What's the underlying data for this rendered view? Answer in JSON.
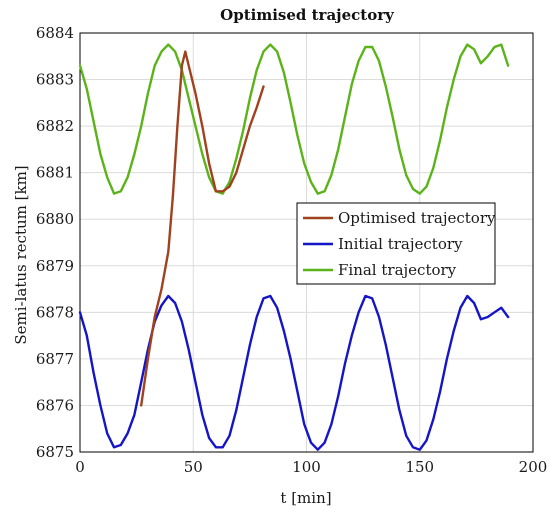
{
  "chart_data": {
    "type": "line",
    "title": "Optimised trajectory",
    "xlabel": "t [min]",
    "ylabel": "Semi-latus rectum [km]",
    "xlim": [
      0,
      200
    ],
    "ylim": [
      6875,
      6884
    ],
    "xticks": [
      0,
      50,
      100,
      150,
      200
    ],
    "yticks": [
      6875,
      6876,
      6877,
      6878,
      6879,
      6880,
      6881,
      6882,
      6883,
      6884
    ],
    "grid": true,
    "legend_position": "center-right",
    "series": [
      {
        "name": "Optimised trajectory",
        "color": "#a0421e",
        "x": [
          27,
          30,
          33,
          36,
          39,
          41,
          43,
          45,
          46.5,
          48,
          51,
          54,
          57,
          60,
          63,
          66,
          69,
          72,
          75,
          78,
          81
        ],
        "y": [
          6876.0,
          6877.0,
          6877.9,
          6878.5,
          6879.3,
          6880.5,
          6882.0,
          6883.3,
          6883.6,
          6883.3,
          6882.7,
          6882.0,
          6881.2,
          6880.6,
          6880.6,
          6880.7,
          6881.0,
          6881.5,
          6882.0,
          6882.4,
          6882.85
        ]
      },
      {
        "name": "Initial trajectory",
        "color": "#1515c8",
        "x": [
          0,
          3,
          6,
          9,
          12,
          15,
          18,
          21,
          24,
          27,
          30,
          33,
          36,
          39,
          42,
          45,
          48,
          51,
          54,
          57,
          60,
          63,
          66,
          69,
          72,
          75,
          78,
          81,
          84,
          87,
          90,
          93,
          96,
          99,
          102,
          105,
          108,
          111,
          114,
          117,
          120,
          123,
          126,
          129,
          132,
          135,
          138,
          141,
          144,
          147,
          150,
          153,
          156,
          159,
          162,
          165,
          168,
          171,
          174,
          177,
          180,
          183,
          186,
          189
        ],
        "y": [
          6878.0,
          6877.5,
          6876.7,
          6876.0,
          6875.4,
          6875.1,
          6875.15,
          6875.4,
          6875.8,
          6876.5,
          6877.2,
          6877.8,
          6878.15,
          6878.35,
          6878.2,
          6877.8,
          6877.2,
          6876.5,
          6875.8,
          6875.3,
          6875.1,
          6875.1,
          6875.35,
          6875.9,
          6876.6,
          6877.3,
          6877.9,
          6878.3,
          6878.35,
          6878.1,
          6877.6,
          6877.0,
          6876.3,
          6875.6,
          6875.2,
          6875.05,
          6875.2,
          6875.6,
          6876.2,
          6876.9,
          6877.5,
          6878.0,
          6878.35,
          6878.3,
          6877.9,
          6877.3,
          6876.6,
          6875.9,
          6875.35,
          6875.1,
          6875.05,
          6875.25,
          6875.7,
          6876.3,
          6877.0,
          6877.6,
          6878.1,
          6878.35,
          6878.2,
          6877.85,
          6877.9,
          6878.0,
          6878.1,
          6877.9
        ]
      },
      {
        "name": "Final trajectory",
        "color": "#5bb31a",
        "x": [
          0,
          3,
          6,
          9,
          12,
          15,
          18,
          21,
          24,
          27,
          30,
          33,
          36,
          39,
          42,
          45,
          48,
          51,
          54,
          57,
          60,
          63,
          66,
          69,
          72,
          75,
          78,
          81,
          84,
          87,
          90,
          93,
          96,
          99,
          102,
          105,
          108,
          111,
          114,
          117,
          120,
          123,
          126,
          129,
          132,
          135,
          138,
          141,
          144,
          147,
          150,
          153,
          156,
          159,
          162,
          165,
          168,
          171,
          174,
          177,
          180,
          183,
          186,
          189
        ],
        "y": [
          6883.3,
          6882.8,
          6882.1,
          6881.4,
          6880.9,
          6880.55,
          6880.6,
          6880.9,
          6881.4,
          6882.0,
          6882.7,
          6883.3,
          6883.6,
          6883.75,
          6883.6,
          6883.2,
          6882.6,
          6882.0,
          6881.4,
          6880.9,
          6880.6,
          6880.55,
          6880.8,
          6881.3,
          6881.9,
          6882.6,
          6883.2,
          6883.6,
          6883.75,
          6883.6,
          6883.15,
          6882.5,
          6881.8,
          6881.2,
          6880.8,
          6880.55,
          6880.6,
          6880.95,
          6881.5,
          6882.2,
          6882.9,
          6883.4,
          6883.7,
          6883.7,
          6883.4,
          6882.85,
          6882.2,
          6881.5,
          6880.95,
          6880.65,
          6880.55,
          6880.7,
          6881.1,
          6881.7,
          6882.4,
          6883.0,
          6883.5,
          6883.75,
          6883.65,
          6883.35,
          6883.5,
          6883.7,
          6883.75,
          6883.3
        ]
      }
    ]
  }
}
